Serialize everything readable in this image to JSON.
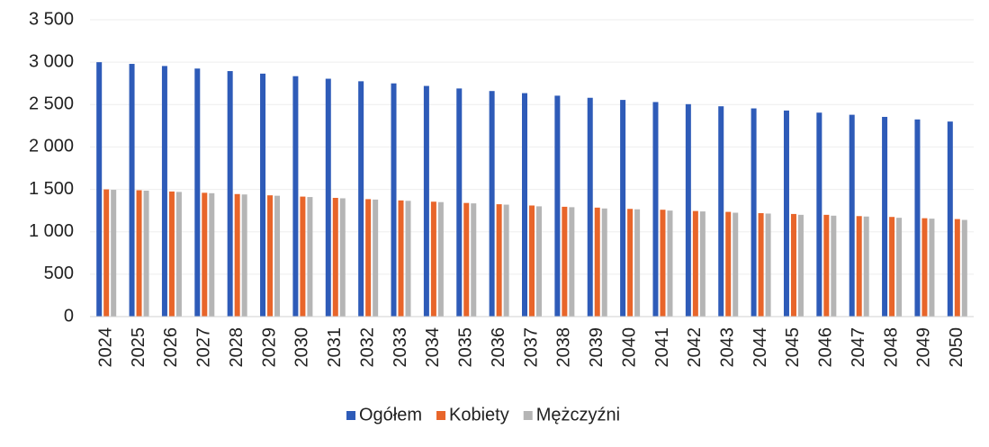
{
  "chart_data": {
    "type": "bar",
    "categories": [
      "2024",
      "2025",
      "2026",
      "2027",
      "2028",
      "2029",
      "2030",
      "2031",
      "2032",
      "2033",
      "2034",
      "2035",
      "2036",
      "2037",
      "2038",
      "2039",
      "2040",
      "2041",
      "2042",
      "2043",
      "2044",
      "2045",
      "2046",
      "2047",
      "2048",
      "2049",
      "2050"
    ],
    "series": [
      {
        "name": "Ogółem",
        "color": "#2e5bb8",
        "values": [
          3000,
          2980,
          2955,
          2925,
          2895,
          2865,
          2835,
          2805,
          2775,
          2750,
          2720,
          2690,
          2660,
          2635,
          2605,
          2580,
          2555,
          2530,
          2505,
          2480,
          2455,
          2430,
          2405,
          2380,
          2355,
          2325,
          2300
        ]
      },
      {
        "name": "Kobiety",
        "color": "#e8652a",
        "values": [
          1500,
          1490,
          1475,
          1460,
          1445,
          1430,
          1415,
          1400,
          1385,
          1370,
          1355,
          1340,
          1325,
          1310,
          1295,
          1285,
          1270,
          1260,
          1245,
          1235,
          1220,
          1210,
          1200,
          1185,
          1175,
          1160,
          1150
        ]
      },
      {
        "name": "Mężczyźni",
        "color": "#b5b5b5",
        "values": [
          1495,
          1485,
          1470,
          1455,
          1440,
          1425,
          1410,
          1395,
          1380,
          1365,
          1350,
          1335,
          1320,
          1300,
          1290,
          1275,
          1265,
          1250,
          1240,
          1225,
          1215,
          1200,
          1190,
          1180,
          1165,
          1155,
          1140
        ]
      }
    ],
    "ylim": [
      0,
      3500
    ],
    "yticks": [
      0,
      500,
      {
        "value": 1000,
        "label": "1 000"
      },
      {
        "value": 1500,
        "label": "1 500"
      },
      {
        "value": 2000,
        "label": "2 000"
      },
      {
        "value": 2500,
        "label": "2 500"
      },
      {
        "value": 3000,
        "label": "3 000"
      },
      {
        "value": 3500,
        "label": "3 500"
      }
    ],
    "grid": true,
    "legend": "bottom"
  }
}
